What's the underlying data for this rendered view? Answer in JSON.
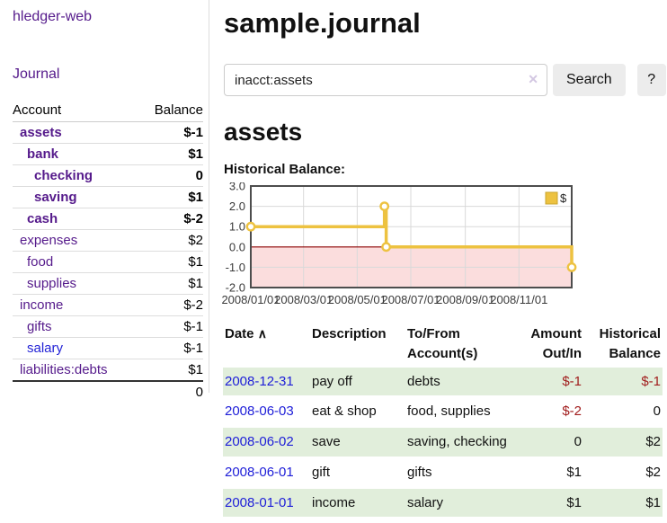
{
  "sidebar": {
    "app_title": "hledger-web",
    "nav": {
      "journal_label": "Journal"
    },
    "accounts_table": {
      "headers": {
        "account": "Account",
        "balance": "Balance"
      },
      "rows": [
        {
          "name": "assets",
          "depth": 1,
          "bold": true,
          "balance": "$-1"
        },
        {
          "name": "bank",
          "depth": 2,
          "bold": true,
          "balance": "$1"
        },
        {
          "name": "checking",
          "depth": 3,
          "bold": true,
          "balance": "0"
        },
        {
          "name": "saving",
          "depth": 3,
          "bold": true,
          "balance": "$1"
        },
        {
          "name": "cash",
          "depth": 2,
          "bold": true,
          "balance": "$-2"
        },
        {
          "name": "expenses",
          "depth": 1,
          "bold": false,
          "balance": "$2"
        },
        {
          "name": "food",
          "depth": 2,
          "bold": false,
          "balance": "$1"
        },
        {
          "name": "supplies",
          "depth": 2,
          "bold": false,
          "balance": "$1"
        },
        {
          "name": "income",
          "depth": 1,
          "bold": false,
          "balance": "$-2"
        },
        {
          "name": "gifts",
          "depth": 2,
          "bold": false,
          "balance": "$-1"
        },
        {
          "name": "salary",
          "depth": 2,
          "bold": false,
          "balance": "$-1",
          "blue_link": true
        },
        {
          "name": "liabilities:debts",
          "depth": 1,
          "bold": false,
          "balance": "$1"
        }
      ],
      "total": "0"
    }
  },
  "main": {
    "title": "sample.journal",
    "search": {
      "value": "inacct:assets",
      "clear_icon": "✕",
      "button_label": "Search",
      "help_label": "?"
    },
    "account_heading": "assets",
    "chart_label": "Historical Balance:",
    "transactions": {
      "headers": {
        "date": "Date",
        "sort_indicator": "∧",
        "description": "Description",
        "tofrom": "To/From\nAccount(s)",
        "amount": "Amount\nOut/In",
        "balance": "Historical\nBalance"
      },
      "rows": [
        {
          "date": "2008-12-31",
          "description": "pay off",
          "accounts": "debts",
          "amount": "$-1",
          "balance": "$-1"
        },
        {
          "date": "2008-06-03",
          "description": "eat & shop",
          "accounts": "food, supplies",
          "amount": "$-2",
          "balance": "0"
        },
        {
          "date": "2008-06-02",
          "description": "save",
          "accounts": "saving, checking",
          "amount": "0",
          "balance": "$2"
        },
        {
          "date": "2008-06-01",
          "description": "gift",
          "accounts": "gifts",
          "amount": "$1",
          "balance": "$2"
        },
        {
          "date": "2008-01-01",
          "description": "income",
          "accounts": "salary",
          "amount": "$1",
          "balance": "$1"
        }
      ]
    }
  },
  "chart_data": {
    "type": "line",
    "title": "Historical Balance:",
    "x_range": [
      "2008-01-01",
      "2008-12-31"
    ],
    "ylim": [
      -2,
      3
    ],
    "y_ticks": [
      "3.0",
      "2.0",
      "1.0",
      "0.0",
      "-1.0",
      "-2.0"
    ],
    "x_ticks": [
      "2008/01/01",
      "2008/03/01",
      "2008/05/01",
      "2008/07/01",
      "2008/09/01",
      "2008/11/01"
    ],
    "series": [
      {
        "name": "$",
        "color": "#edc240",
        "steps": true,
        "points": [
          [
            "2008-01-01",
            1
          ],
          [
            "2008-06-01",
            2
          ],
          [
            "2008-06-03",
            0
          ],
          [
            "2008-12-31",
            -1
          ]
        ]
      }
    ],
    "legend": {
      "label": "$",
      "position": "top-right"
    },
    "grid": true,
    "zero_line_color": "#8b0000",
    "negative_region_color": "#fbdddd"
  },
  "colors": {
    "link_purple": "#551a8b",
    "link_blue": "#2323d6",
    "date_link_blue": "#1d1dd8",
    "negative_strong": "#8b0000",
    "negative_soft": "#b36a6a",
    "negative_table": "#a11d1d",
    "row_green": "#e1eedb",
    "series_gold": "#edc240"
  }
}
